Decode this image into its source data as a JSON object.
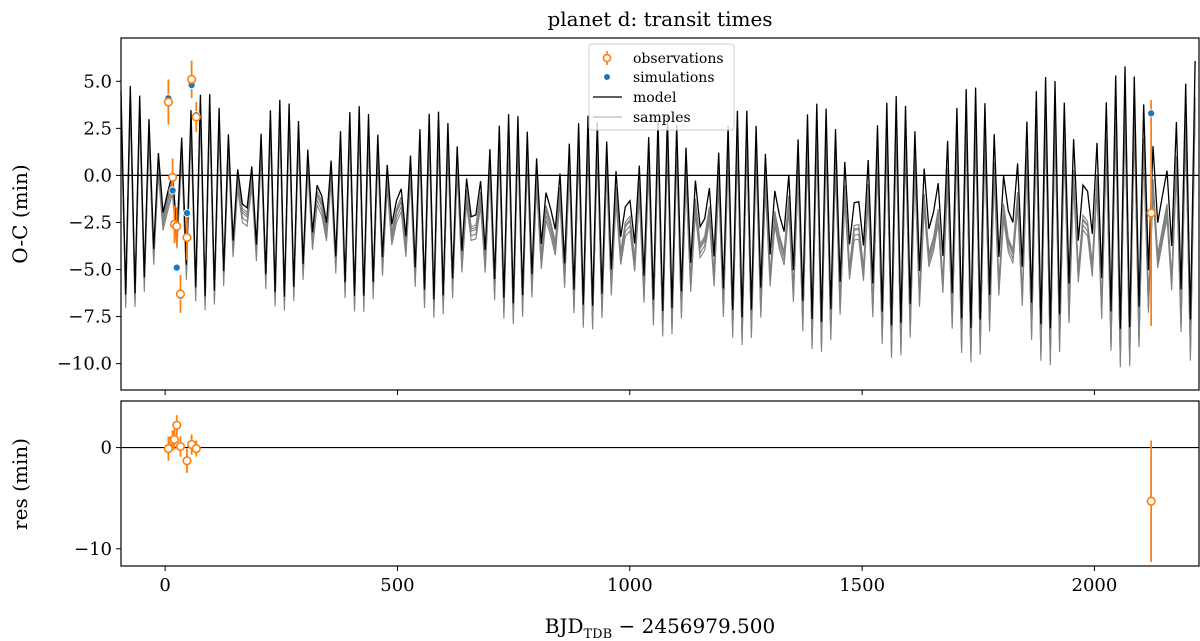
{
  "chart_data": {
    "type": "scatter",
    "title": "planet d: transit times",
    "xlabel": "BJD_TDB − 2456979.500",
    "xlabel_parts": {
      "base": "BJD",
      "sub": "TDB",
      "rest": " − 2456979.500"
    },
    "xlim": [
      -95,
      2225
    ],
    "xticks": [
      0,
      500,
      1000,
      1500,
      2000
    ],
    "xtick_labels": [
      "0",
      "500",
      "1000",
      "1500",
      "2000"
    ],
    "grid": false,
    "legend_placement": "upper center",
    "legend": [
      {
        "label": "observations",
        "marker": "open-circle-errorbar",
        "color": "#ff7f0e"
      },
      {
        "label": "simulations",
        "marker": "filled-circle",
        "color": "#1f77b4"
      },
      {
        "label": "model",
        "marker": "line",
        "color": "#000000"
      },
      {
        "label": "samples",
        "marker": "line",
        "color": "#bbbbbb"
      }
    ],
    "panels": [
      {
        "id": "oc",
        "ylabel": "O-C (min)",
        "ylim": [
          -11.4,
          7.3
        ],
        "yticks": [
          -10.0,
          -7.5,
          -5.0,
          -2.5,
          0.0,
          2.5,
          5.0
        ],
        "ytick_labels": [
          "−10.0",
          "−7.5",
          "−5.0",
          "−2.5",
          "0.0",
          "2.5",
          "5.0"
        ],
        "zero_line": true,
        "model": {
          "period": 10.05,
          "first_epoch": -95,
          "last_epoch": 2225,
          "center": [
            [
              -95,
              -0.8
            ],
            [
              500,
              -1.5
            ],
            [
              1000,
              -2.0
            ],
            [
              1500,
              -2.0
            ],
            [
              2225,
              -1.0
            ]
          ],
          "amplitude": [
            [
              -95,
              5.6
            ],
            [
              500,
              5.0
            ],
            [
              1000,
              5.1
            ],
            [
              1500,
              6.0
            ],
            [
              2225,
              7.3
            ]
          ],
          "color": "#000000"
        },
        "samples": [
          {
            "offset": -0.25,
            "amp_scale": 0.98
          },
          {
            "offset": -0.5,
            "amp_scale": 0.97
          },
          {
            "offset": -0.75,
            "amp_scale": 0.96
          },
          {
            "offset": -1.0,
            "amp_scale": 0.95
          },
          {
            "offset": -0.4,
            "amp_scale": 0.93
          }
        ],
        "samples_extra_drift_per_day": -0.0008,
        "samples_color": "#808080",
        "observations": {
          "x": [
            7,
            16,
            20,
            25,
            33,
            47,
            57,
            67,
            2122
          ],
          "y": [
            3.9,
            -0.1,
            -2.6,
            -2.7,
            -6.3,
            -3.3,
            5.1,
            3.1,
            -2.0
          ],
          "yerr": [
            1.2,
            1.0,
            1.0,
            1.0,
            1.0,
            1.2,
            1.0,
            0.8,
            6.0
          ],
          "color": "#ff7f0e"
        },
        "simulations": {
          "x": [
            7,
            16,
            25,
            33,
            47,
            57,
            67,
            2122
          ],
          "y": [
            4.1,
            -0.8,
            -4.9,
            -6.4,
            -2.0,
            4.8,
            3.2,
            3.3
          ],
          "color": "#1f77b4"
        }
      },
      {
        "id": "res",
        "ylabel": "res (min)",
        "ylim": [
          -11.7,
          4.6
        ],
        "yticks": [
          -10,
          0
        ],
        "ytick_labels": [
          "−10",
          "0"
        ],
        "zero_line": true,
        "observations": {
          "x": [
            7,
            16,
            20,
            25,
            33,
            47,
            57,
            67,
            2122
          ],
          "y": [
            -0.1,
            0.7,
            0.8,
            2.2,
            0.1,
            -1.3,
            0.3,
            -0.1,
            -5.3
          ],
          "yerr": [
            1.2,
            1.0,
            1.0,
            1.0,
            1.0,
            1.2,
            1.0,
            0.8,
            6.0
          ],
          "color": "#ff7f0e"
        }
      }
    ]
  }
}
